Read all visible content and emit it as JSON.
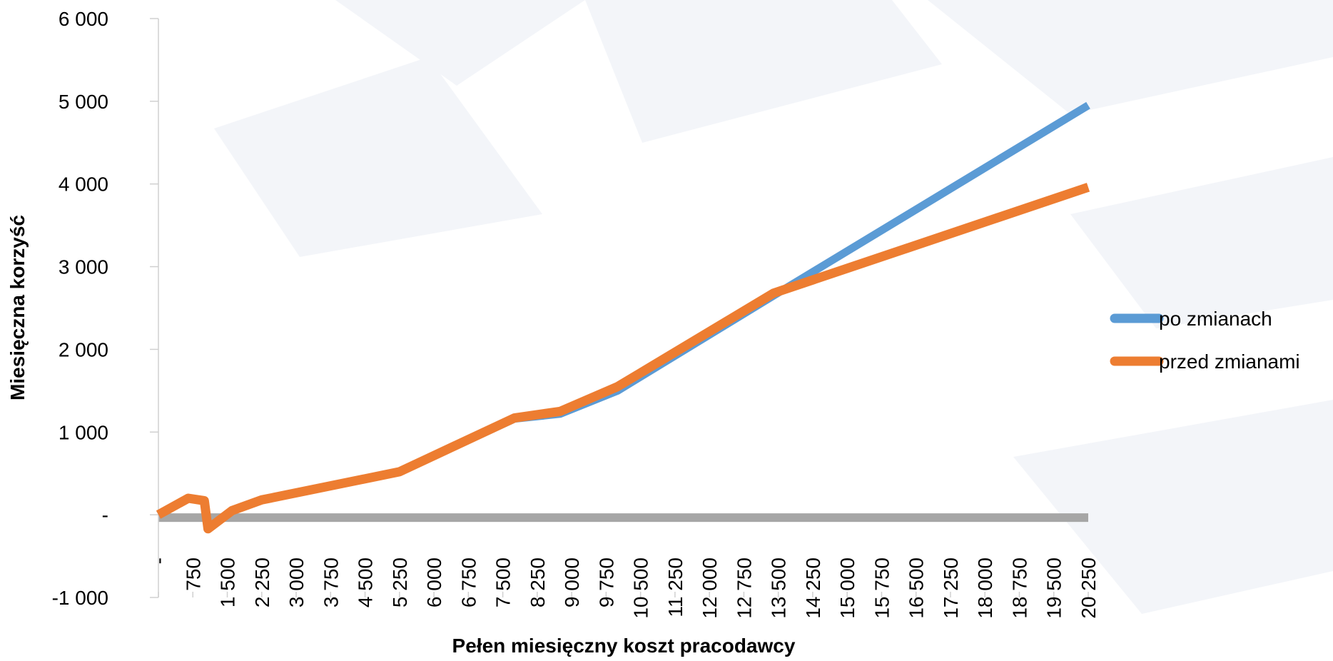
{
  "chart_data": {
    "type": "line",
    "title": "",
    "xlabel": "Pełen miesięczny koszt pracodawcy",
    "ylabel": "Miesięczna korzyść",
    "ylim": [
      -1000,
      6000
    ],
    "xlim": [
      0,
      20250
    ],
    "yticks": [
      -1000,
      0,
      1000,
      2000,
      3000,
      4000,
      5000,
      6000
    ],
    "ytick_labels": [
      "-1 000",
      "-",
      "1 000",
      "2 000",
      "3 000",
      "4 000",
      "5 000",
      "6 000"
    ],
    "xticks": [
      0,
      750,
      1500,
      2250,
      3000,
      3750,
      4500,
      5250,
      6000,
      6750,
      7500,
      8250,
      9000,
      9750,
      10500,
      11250,
      12000,
      12750,
      13500,
      14250,
      15000,
      15750,
      16500,
      17250,
      18000,
      18750,
      19500,
      20250
    ],
    "xtick_labels": [
      "-",
      "750",
      "1 500",
      "2 250",
      "3 000",
      "3 750",
      "4 500",
      "5 250",
      "6 000",
      "6 750",
      "7 500",
      "8 250",
      "9 000",
      "9 750",
      "10 500",
      "11 250",
      "12 000",
      "12 750",
      "13 500",
      "14 250",
      "15 000",
      "15 750",
      "16 500",
      "17 250",
      "18 000",
      "18 750",
      "19 500",
      "20 250"
    ],
    "grid": false,
    "legend_position": "right",
    "series": [
      {
        "name": "po zmianach",
        "color": "#5b9bd5",
        "x": [
          0,
          650,
          1000,
          1080,
          1600,
          2250,
          5250,
          7750,
          8750,
          10000,
          13400,
          20250
        ],
        "y": [
          0,
          200,
          170,
          -170,
          50,
          180,
          520,
          1160,
          1220,
          1500,
          2650,
          4950
        ]
      },
      {
        "name": "przed zmianami",
        "color": "#ed7d31",
        "x": [
          0,
          650,
          1000,
          1080,
          1600,
          2250,
          5250,
          7750,
          8750,
          10000,
          13400,
          20250
        ],
        "y": [
          0,
          200,
          170,
          -170,
          50,
          180,
          520,
          1170,
          1250,
          1550,
          2680,
          3960
        ]
      }
    ],
    "zero_band": {
      "y": 0,
      "color": "#a6a6a6"
    }
  }
}
